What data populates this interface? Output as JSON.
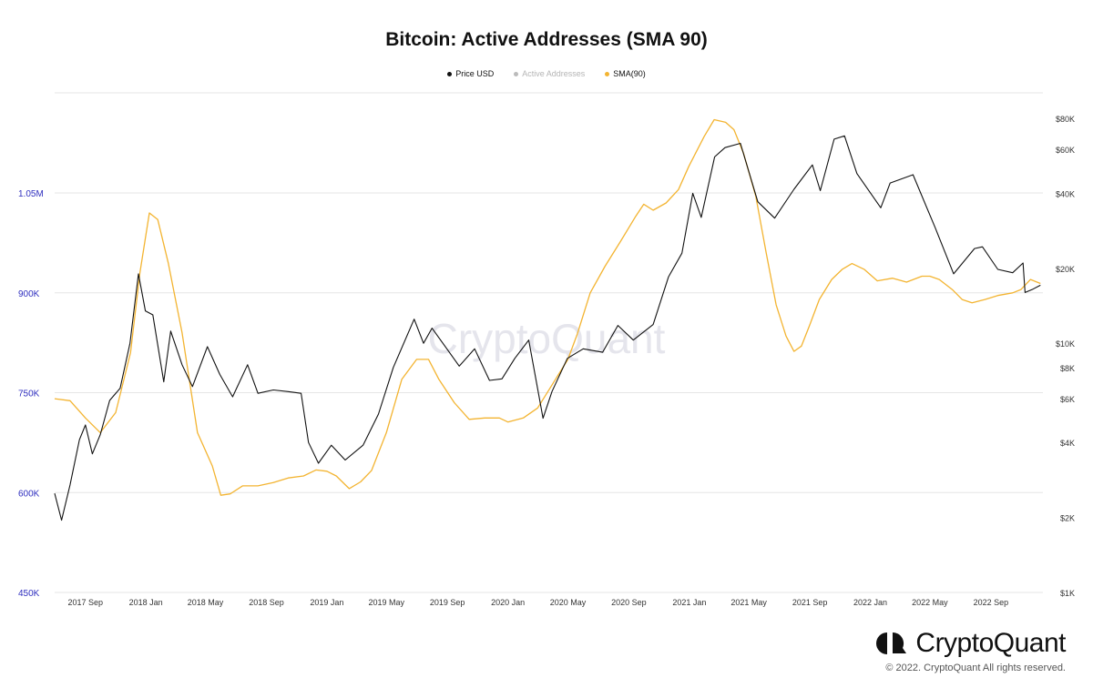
{
  "chart_data": {
    "type": "line",
    "title": "Bitcoin: Active Addresses (SMA 90)",
    "legend": [
      {
        "name": "Price USD",
        "color": "#111111",
        "active": true
      },
      {
        "name": "Active Addresses",
        "color": "#bbbbbb",
        "active": false
      },
      {
        "name": "SMA(90)",
        "color": "#f3b431",
        "active": true
      }
    ],
    "x_ticks": [
      "2017 Sep",
      "2018 Jan",
      "2018 May",
      "2018 Sep",
      "2019 Jan",
      "2019 May",
      "2019 Sep",
      "2020 Jan",
      "2020 May",
      "2020 Sep",
      "2021 Jan",
      "2021 May",
      "2021 Sep",
      "2022 Jan",
      "2022 May",
      "2022 Sep"
    ],
    "left_axis": {
      "ticks": [
        "450K",
        "600K",
        "750K",
        "900K",
        "1.05M"
      ],
      "range": [
        450000,
        1150000
      ],
      "color": "#2f2fbf"
    },
    "right_axis": {
      "scale": "log",
      "ticks": [
        "$1K",
        "$2K",
        "$4K",
        "$6K",
        "$8K",
        "$10K",
        "$20K",
        "$40K",
        "$60K",
        "$80K"
      ],
      "range": [
        1000,
        90000
      ]
    },
    "xlim": [
      "2017-07-01",
      "2022-12-15"
    ],
    "grid": true,
    "legend_position": "top",
    "series": [
      {
        "name": "SMA(90)",
        "axis": "left",
        "color": "#f3b431",
        "points": [
          [
            "2017-07-01",
            741000
          ],
          [
            "2017-08-01",
            738000
          ],
          [
            "2017-09-01",
            712000
          ],
          [
            "2017-10-01",
            690000
          ],
          [
            "2017-11-01",
            720000
          ],
          [
            "2017-12-01",
            810000
          ],
          [
            "2017-12-20",
            930000
          ],
          [
            "2018-01-08",
            1020000
          ],
          [
            "2018-01-25",
            1010000
          ],
          [
            "2018-02-15",
            945000
          ],
          [
            "2018-03-15",
            840000
          ],
          [
            "2018-04-15",
            690000
          ],
          [
            "2018-05-15",
            640000
          ],
          [
            "2018-06-01",
            596000
          ],
          [
            "2018-06-20",
            598000
          ],
          [
            "2018-07-15",
            610000
          ],
          [
            "2018-08-15",
            610000
          ],
          [
            "2018-09-15",
            615000
          ],
          [
            "2018-10-15",
            622000
          ],
          [
            "2018-11-15",
            625000
          ],
          [
            "2018-12-10",
            634000
          ],
          [
            "2019-01-01",
            632000
          ],
          [
            "2019-01-20",
            625000
          ],
          [
            "2019-02-15",
            606000
          ],
          [
            "2019-03-10",
            616000
          ],
          [
            "2019-04-01",
            633000
          ],
          [
            "2019-05-01",
            690000
          ],
          [
            "2019-06-01",
            770000
          ],
          [
            "2019-07-01",
            800000
          ],
          [
            "2019-07-25",
            800000
          ],
          [
            "2019-08-15",
            770000
          ],
          [
            "2019-09-15",
            735000
          ],
          [
            "2019-10-15",
            710000
          ],
          [
            "2019-11-15",
            712000
          ],
          [
            "2019-12-15",
            712000
          ],
          [
            "2020-01-01",
            706000
          ],
          [
            "2020-02-01",
            712000
          ],
          [
            "2020-03-01",
            727000
          ],
          [
            "2020-04-01",
            764000
          ],
          [
            "2020-05-01",
            800000
          ],
          [
            "2020-05-20",
            838000
          ],
          [
            "2020-06-15",
            900000
          ],
          [
            "2020-07-15",
            940000
          ],
          [
            "2020-08-15",
            977000
          ],
          [
            "2020-09-15",
            1015000
          ],
          [
            "2020-10-01",
            1033000
          ],
          [
            "2020-10-20",
            1024000
          ],
          [
            "2020-11-15",
            1035000
          ],
          [
            "2020-12-10",
            1055000
          ],
          [
            "2020-12-31",
            1090000
          ],
          [
            "2021-01-31",
            1135000
          ],
          [
            "2021-02-20",
            1160000
          ],
          [
            "2021-03-15",
            1156000
          ],
          [
            "2021-04-01",
            1145000
          ],
          [
            "2021-04-20",
            1110000
          ],
          [
            "2021-05-15",
            1045000
          ],
          [
            "2021-06-05",
            960000
          ],
          [
            "2021-06-25",
            882000
          ],
          [
            "2021-07-15",
            835000
          ],
          [
            "2021-07-31",
            812000
          ],
          [
            "2021-08-15",
            820000
          ],
          [
            "2021-09-01",
            852000
          ],
          [
            "2021-09-20",
            890000
          ],
          [
            "2021-10-15",
            920000
          ],
          [
            "2021-11-05",
            935000
          ],
          [
            "2021-11-25",
            944000
          ],
          [
            "2021-12-20",
            935000
          ],
          [
            "2022-01-15",
            918000
          ],
          [
            "2022-02-15",
            922000
          ],
          [
            "2022-03-15",
            916000
          ],
          [
            "2022-04-15",
            925000
          ],
          [
            "2022-05-01",
            925000
          ],
          [
            "2022-05-20",
            920000
          ],
          [
            "2022-06-15",
            905000
          ],
          [
            "2022-07-05",
            890000
          ],
          [
            "2022-07-25",
            885000
          ],
          [
            "2022-08-20",
            890000
          ],
          [
            "2022-09-15",
            896000
          ],
          [
            "2022-10-15",
            900000
          ],
          [
            "2022-11-01",
            905000
          ],
          [
            "2022-11-20",
            920000
          ],
          [
            "2022-12-10",
            914000
          ]
        ]
      },
      {
        "name": "Price USD",
        "axis": "right",
        "color": "#111111",
        "points": [
          [
            "2017-07-01",
            2500
          ],
          [
            "2017-07-15",
            1950
          ],
          [
            "2017-08-01",
            2700
          ],
          [
            "2017-08-20",
            4100
          ],
          [
            "2017-09-01",
            4700
          ],
          [
            "2017-09-15",
            3600
          ],
          [
            "2017-10-01",
            4300
          ],
          [
            "2017-10-20",
            5900
          ],
          [
            "2017-11-10",
            6600
          ],
          [
            "2017-11-30",
            10000
          ],
          [
            "2017-12-17",
            19000
          ],
          [
            "2017-12-31",
            13500
          ],
          [
            "2018-01-15",
            13000
          ],
          [
            "2018-02-06",
            7000
          ],
          [
            "2018-02-20",
            11200
          ],
          [
            "2018-03-15",
            8200
          ],
          [
            "2018-04-05",
            6700
          ],
          [
            "2018-05-05",
            9700
          ],
          [
            "2018-05-30",
            7500
          ],
          [
            "2018-06-25",
            6100
          ],
          [
            "2018-07-25",
            8200
          ],
          [
            "2018-08-15",
            6300
          ],
          [
            "2018-09-15",
            6500
          ],
          [
            "2018-10-15",
            6400
          ],
          [
            "2018-11-10",
            6300
          ],
          [
            "2018-11-25",
            4000
          ],
          [
            "2018-12-15",
            3300
          ],
          [
            "2019-01-10",
            3900
          ],
          [
            "2019-02-07",
            3400
          ],
          [
            "2019-03-15",
            3900
          ],
          [
            "2019-04-15",
            5200
          ],
          [
            "2019-05-15",
            8000
          ],
          [
            "2019-06-26",
            12500
          ],
          [
            "2019-07-15",
            10000
          ],
          [
            "2019-08-01",
            11500
          ],
          [
            "2019-08-20",
            10200
          ],
          [
            "2019-09-25",
            8100
          ],
          [
            "2019-10-26",
            9500
          ],
          [
            "2019-11-25",
            7100
          ],
          [
            "2019-12-20",
            7200
          ],
          [
            "2020-01-15",
            8700
          ],
          [
            "2020-02-12",
            10300
          ],
          [
            "2020-03-12",
            5000
          ],
          [
            "2020-03-30",
            6400
          ],
          [
            "2020-04-30",
            8700
          ],
          [
            "2020-06-01",
            9500
          ],
          [
            "2020-07-10",
            9200
          ],
          [
            "2020-08-10",
            11800
          ],
          [
            "2020-09-10",
            10300
          ],
          [
            "2020-10-20",
            11900
          ],
          [
            "2020-11-20",
            18500
          ],
          [
            "2020-12-17",
            23000
          ],
          [
            "2021-01-08",
            40000
          ],
          [
            "2021-01-25",
            32000
          ],
          [
            "2021-02-21",
            56000
          ],
          [
            "2021-03-14",
            61000
          ],
          [
            "2021-04-14",
            63500
          ],
          [
            "2021-05-19",
            37000
          ],
          [
            "2021-06-22",
            31800
          ],
          [
            "2021-07-31",
            41500
          ],
          [
            "2021-09-06",
            52000
          ],
          [
            "2021-09-22",
            41000
          ],
          [
            "2021-10-20",
            66000
          ],
          [
            "2021-11-10",
            68000
          ],
          [
            "2021-12-05",
            48000
          ],
          [
            "2022-01-22",
            35000
          ],
          [
            "2022-02-10",
            44000
          ],
          [
            "2022-03-28",
            47500
          ],
          [
            "2022-05-12",
            29000
          ],
          [
            "2022-06-18",
            19000
          ],
          [
            "2022-07-30",
            24000
          ],
          [
            "2022-08-15",
            24400
          ],
          [
            "2022-09-15",
            19800
          ],
          [
            "2022-10-15",
            19200
          ],
          [
            "2022-11-05",
            21000
          ],
          [
            "2022-11-09",
            16000
          ],
          [
            "2022-11-25",
            16500
          ],
          [
            "2022-12-10",
            17100
          ]
        ]
      }
    ]
  },
  "watermark": "CryptoQuant",
  "brand": {
    "name": "CryptoQuant",
    "logo_icon": "cryptoquant-logo-icon"
  },
  "copyright": "© 2022. CryptoQuant All rights reserved."
}
